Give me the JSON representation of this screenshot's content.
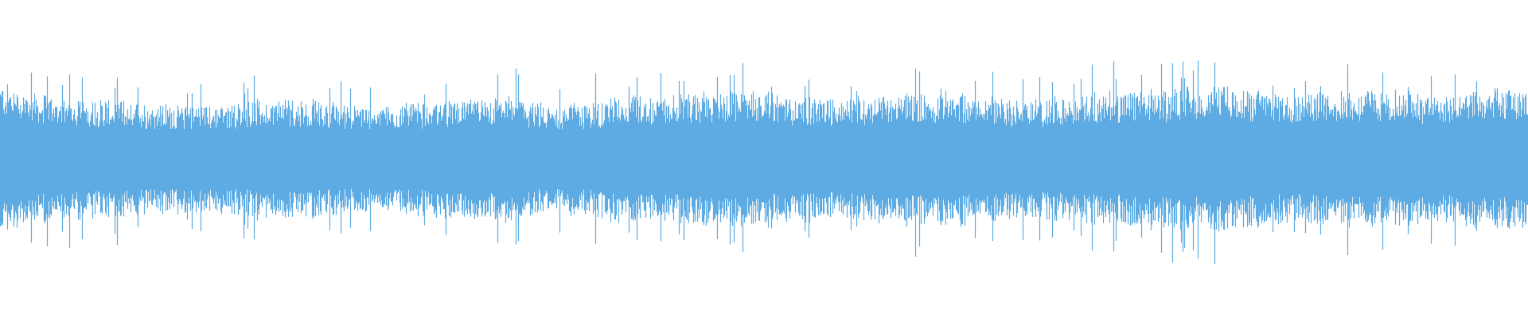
{
  "waveform": {
    "type": "audio-waveform",
    "color": "#5DABE2",
    "background": "#FFFFFF"
  }
}
